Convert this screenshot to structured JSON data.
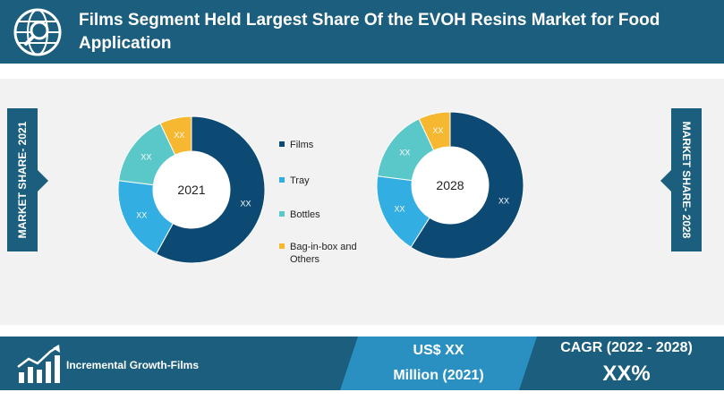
{
  "header": {
    "title": "Films Segment Held Largest Share Of the EVOH Resins Market for Food Application",
    "icon": "globe-search-icon"
  },
  "side_labels": {
    "left": "MARKET SHARE- 2021",
    "right": "MARKET SHARE- 2028"
  },
  "colors": {
    "header": "#1b5e7e",
    "films": "#0d4a73",
    "tray": "#33aee3",
    "bottles": "#5ac7c9",
    "bag_in_box": "#f6b731",
    "background": "#f2f2f2"
  },
  "chart_data": [
    {
      "type": "pie",
      "center_label": "2021",
      "categories": [
        "Films",
        "Tray",
        "Bottles",
        "Bag-in-box and Others"
      ],
      "values": [
        58,
        19,
        16,
        7
      ],
      "data_labels": [
        "XX",
        "XX",
        "XX",
        "XX"
      ]
    },
    {
      "type": "pie",
      "center_label": "2028",
      "categories": [
        "Films",
        "Tray",
        "Bottles",
        "Bag-in-box and Others"
      ],
      "values": [
        59,
        18,
        16,
        7
      ],
      "data_labels": [
        "XX",
        "XX",
        "XX",
        "XX"
      ]
    }
  ],
  "legend": [
    "Films",
    "Tray",
    "Bottles",
    "Bag-in-box and Others"
  ],
  "footer": {
    "label": "Incremental Growth-Films",
    "icon": "growth-chart-icon",
    "value_line1": "US$ XX",
    "value_line2": "Million (2021)",
    "cagr_label": "CAGR (2022 - 2028)",
    "cagr_value": "XX%"
  }
}
